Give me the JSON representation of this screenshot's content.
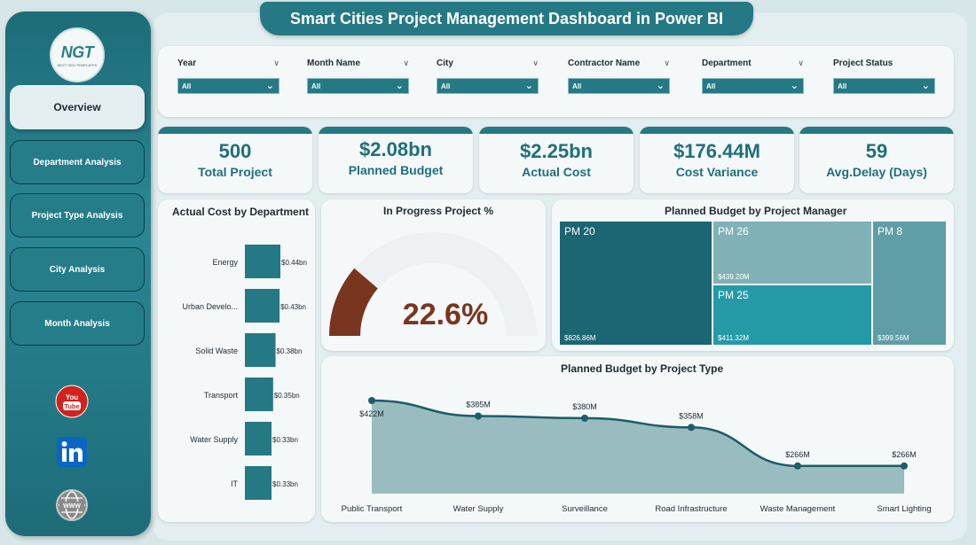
{
  "title": "Smart Cities Project Management Dashboard in Power BI",
  "logo": {
    "text": "NGT",
    "sub": "NEXT GEN TEMPLATES"
  },
  "nav": [
    {
      "label": "Overview",
      "active": true
    },
    {
      "label": "Department Analysis",
      "active": false
    },
    {
      "label": "Project Type Analysis",
      "active": false
    },
    {
      "label": "City Analysis",
      "active": false
    },
    {
      "label": "Month Analysis",
      "active": false
    }
  ],
  "social": {
    "youtube": "You Tube",
    "linkedin": "in"
  },
  "filters": [
    {
      "label": "Year",
      "value": "All"
    },
    {
      "label": "Month Name",
      "value": "All"
    },
    {
      "label": "City",
      "value": "All"
    },
    {
      "label": "Contractor Name",
      "value": "All"
    },
    {
      "label": "Department",
      "value": "All"
    },
    {
      "label": "Project Status",
      "value": "All"
    }
  ],
  "kpis": [
    {
      "value": "500",
      "label": "Total Project"
    },
    {
      "value": "$2.08bn",
      "label": "Planned Budget"
    },
    {
      "value": "$2.25bn",
      "label": "Actual Cost"
    },
    {
      "value": "$176.44M",
      "label": "Cost Variance"
    },
    {
      "value": "59",
      "label": "Avg.Delay (Days)"
    }
  ],
  "colors": {
    "teal": "#247984",
    "gauge": "#7a3520",
    "tmDark": "#1b6672",
    "tmMid": "#7fb1b7",
    "tmBright": "#259aa7",
    "tmSide": "#5f9ea6",
    "area": "#98bcc0",
    "line": "#1d5c68"
  },
  "chart_data": [
    {
      "type": "bar",
      "title": "Actual Cost by Department",
      "categories": [
        "Energy",
        "Urban Develo...",
        "Solid Waste",
        "Transport",
        "Water Supply",
        "IT"
      ],
      "values": [
        0.44,
        0.43,
        0.38,
        0.35,
        0.33,
        0.33
      ],
      "labels": [
        "$0.44bn",
        "$0.43bn",
        "$0.38bn",
        "$0.35bn",
        "$0.33bn",
        "$0.33bn"
      ],
      "unit": "bn"
    },
    {
      "type": "pie",
      "title": "In Progress Project %",
      "value": 22.6,
      "label": "22.6%"
    },
    {
      "type": "heatmap",
      "title": "Planned Budget by Project Manager",
      "items": [
        {
          "name": "PM 20",
          "value": 826.86,
          "label": "$826.86M"
        },
        {
          "name": "PM 26",
          "value": 439.2,
          "label": "$439.20M"
        },
        {
          "name": "PM 25",
          "value": 411.32,
          "label": "$411.32M"
        },
        {
          "name": "PM 8",
          "value": 399.56,
          "label": "$399.56M"
        }
      ]
    },
    {
      "type": "area",
      "title": "Planned Budget by Project Type",
      "categories": [
        "Public Transport",
        "Water Supply",
        "Surveillance",
        "Road Infrastructure",
        "Waste Management",
        "Smart Lighting"
      ],
      "values": [
        422,
        385,
        380,
        358,
        266,
        266
      ],
      "labels": [
        "$422M",
        "$385M",
        "$380M",
        "$358M",
        "$266M",
        "$266M"
      ],
      "unit": "M"
    }
  ]
}
